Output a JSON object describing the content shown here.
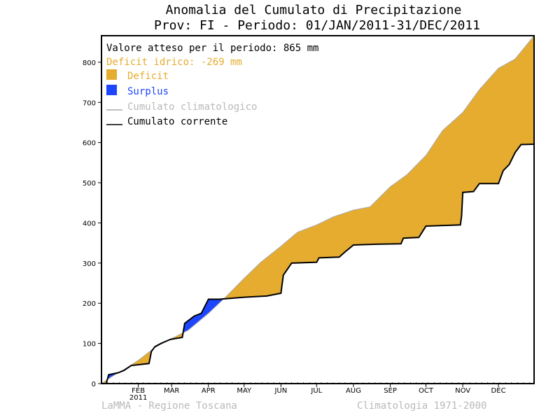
{
  "chart_data": {
    "type": "area",
    "title": "Anomalia del Cumulato di Precipitazione",
    "subtitle": "Prov: FI - Periodo: 01/JAN/2011-31/DEC/2011",
    "xlabel": "",
    "ylabel": "",
    "xlim": [
      "2011-01-01",
      "2011-12-31"
    ],
    "ylim": [
      0,
      866
    ],
    "y_ticks": [
      0,
      100,
      200,
      300,
      400,
      500,
      600,
      700,
      800
    ],
    "x_ticks": [
      {
        "label": "FEB",
        "date": "2011-02-01"
      },
      {
        "label": "MAR",
        "date": "2011-03-01"
      },
      {
        "label": "APR",
        "date": "2011-04-01"
      },
      {
        "label": "MAY",
        "date": "2011-05-01"
      },
      {
        "label": "JUN",
        "date": "2011-06-01"
      },
      {
        "label": "JUL",
        "date": "2011-07-01"
      },
      {
        "label": "AUG",
        "date": "2011-08-01"
      },
      {
        "label": "SEP",
        "date": "2011-09-01"
      },
      {
        "label": "OCT",
        "date": "2011-10-01"
      },
      {
        "label": "NOV",
        "date": "2011-11-01"
      },
      {
        "label": "DEC",
        "date": "2011-12-01"
      }
    ],
    "year_label": "2011",
    "grid": false,
    "legend_position": "top-left",
    "colors": {
      "deficit": "#e5ac30",
      "surplus": "#1f46ff",
      "climatological": "#aaaaaa",
      "current": "#000000"
    },
    "legend": {
      "expected_text": "Valore atteso per il periodo: 865 mm",
      "deficit_text": "Deficit idrico: -269 mm",
      "deficit_label": "Deficit",
      "surplus_label": "Surplus",
      "climatological_label": "Cumulato climatologico",
      "current_label": "Cumulato corrente"
    },
    "series": [
      {
        "name": "Cumulato climatologico",
        "points": [
          [
            "2011-01-01",
            0
          ],
          [
            "2011-01-10",
            18
          ],
          [
            "2011-01-20",
            35
          ],
          [
            "2011-02-01",
            58
          ],
          [
            "2011-02-15",
            90
          ],
          [
            "2011-03-01",
            112
          ],
          [
            "2011-03-15",
            133
          ],
          [
            "2011-04-01",
            175
          ],
          [
            "2011-04-15",
            214
          ],
          [
            "2011-05-01",
            262
          ],
          [
            "2011-05-15",
            302
          ],
          [
            "2011-06-01",
            342
          ],
          [
            "2011-06-15",
            377
          ],
          [
            "2011-07-01",
            395
          ],
          [
            "2011-07-15",
            415
          ],
          [
            "2011-08-01",
            432
          ],
          [
            "2011-08-15",
            440
          ],
          [
            "2011-09-01",
            490
          ],
          [
            "2011-09-15",
            520
          ],
          [
            "2011-10-01",
            568
          ],
          [
            "2011-10-15",
            630
          ],
          [
            "2011-11-01",
            675
          ],
          [
            "2011-11-15",
            732
          ],
          [
            "2011-12-01",
            785
          ],
          [
            "2011-12-15",
            808
          ],
          [
            "2011-12-31",
            866
          ]
        ]
      },
      {
        "name": "Cumulato corrente",
        "points": [
          [
            "2011-01-01",
            0
          ],
          [
            "2011-01-05",
            0
          ],
          [
            "2011-01-07",
            22
          ],
          [
            "2011-01-15",
            27
          ],
          [
            "2011-01-20",
            33
          ],
          [
            "2011-01-26",
            45
          ],
          [
            "2011-02-10",
            50
          ],
          [
            "2011-02-12",
            80
          ],
          [
            "2011-02-15",
            92
          ],
          [
            "2011-02-20",
            100
          ],
          [
            "2011-02-28",
            110
          ],
          [
            "2011-03-10",
            115
          ],
          [
            "2011-03-12",
            150
          ],
          [
            "2011-03-20",
            168
          ],
          [
            "2011-03-26",
            175
          ],
          [
            "2011-04-01",
            210
          ],
          [
            "2011-04-10",
            210
          ],
          [
            "2011-05-01",
            215
          ],
          [
            "2011-05-20",
            218
          ],
          [
            "2011-06-01",
            225
          ],
          [
            "2011-06-03",
            270
          ],
          [
            "2011-06-10",
            300
          ],
          [
            "2011-07-01",
            302
          ],
          [
            "2011-07-03",
            313
          ],
          [
            "2011-07-20",
            315
          ],
          [
            "2011-07-25",
            328
          ],
          [
            "2011-08-01",
            345
          ],
          [
            "2011-08-20",
            347
          ],
          [
            "2011-09-10",
            348
          ],
          [
            "2011-09-12",
            362
          ],
          [
            "2011-09-25",
            364
          ],
          [
            "2011-10-01",
            392
          ],
          [
            "2011-10-10",
            393
          ],
          [
            "2011-10-30",
            395
          ],
          [
            "2011-10-31",
            418
          ],
          [
            "2011-11-01",
            476
          ],
          [
            "2011-11-10",
            478
          ],
          [
            "2011-11-15",
            498
          ],
          [
            "2011-12-01",
            498
          ],
          [
            "2011-12-05",
            530
          ],
          [
            "2011-12-10",
            545
          ],
          [
            "2011-12-15",
            575
          ],
          [
            "2011-12-20",
            595
          ],
          [
            "2011-12-31",
            596
          ]
        ]
      }
    ]
  },
  "footer": {
    "left": "LaMMA - Regione Toscana",
    "right": "Climatologia 1971-2000"
  }
}
